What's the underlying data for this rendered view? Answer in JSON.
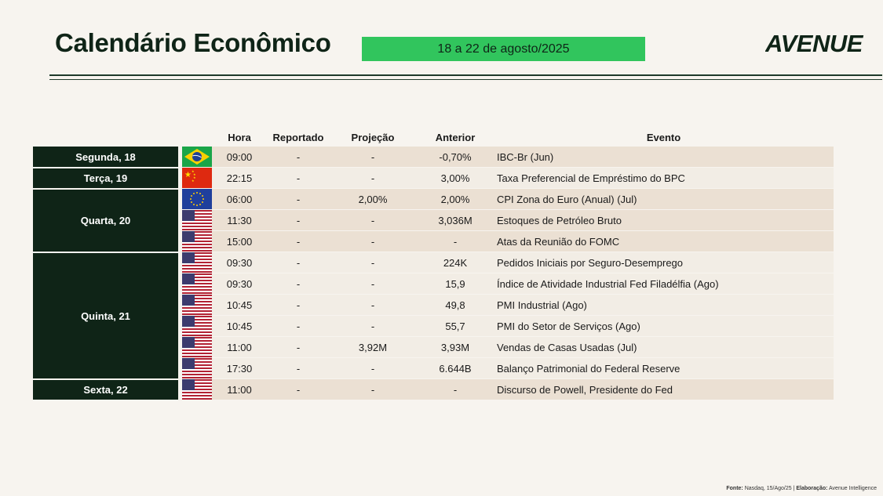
{
  "header": {
    "title": "Calendário Econômico",
    "period": "18 a 22 de agosto/2025",
    "logo_text": "Avenue"
  },
  "columns": {
    "hora": "Hora",
    "reportado": "Reportado",
    "projecao": "Projeção",
    "anterior": "Anterior",
    "evento": "Evento"
  },
  "days": [
    "Segunda, 18",
    "Terça, 19",
    "Quarta, 20",
    "Quinta, 21",
    "Sexta, 22"
  ],
  "rows": [
    {
      "flag": "brazil-flag",
      "hora": "09:00",
      "reportado": "-",
      "projecao": "-",
      "anterior": "-0,70%",
      "evento": "IBC-Br (Jun)"
    },
    {
      "flag": "china-flag",
      "hora": "22:15",
      "reportado": "-",
      "projecao": "-",
      "anterior": "3,00%",
      "evento": "Taxa Preferencial de Empréstimo do BPC"
    },
    {
      "flag": "eu-flag",
      "hora": "06:00",
      "reportado": "-",
      "projecao": "2,00%",
      "anterior": "2,00%",
      "evento": "CPI Zona do Euro (Anual) (Jul)"
    },
    {
      "flag": "usa-flag",
      "hora": "11:30",
      "reportado": "-",
      "projecao": "-",
      "anterior": "3,036M",
      "evento": "Estoques de Petróleo Bruto"
    },
    {
      "flag": "usa-flag",
      "hora": "15:00",
      "reportado": "-",
      "projecao": "-",
      "anterior": "-",
      "evento": "Atas da Reunião do FOMC"
    },
    {
      "flag": "usa-flag",
      "hora": "09:30",
      "reportado": "-",
      "projecao": "-",
      "anterior": "224K",
      "evento": "Pedidos Iniciais por Seguro-Desemprego"
    },
    {
      "flag": "usa-flag",
      "hora": "09:30",
      "reportado": "-",
      "projecao": "-",
      "anterior": "15,9",
      "evento": "Índice de Atividade Industrial Fed Filadélfia (Ago)"
    },
    {
      "flag": "usa-flag",
      "hora": "10:45",
      "reportado": "-",
      "projecao": "-",
      "anterior": "49,8",
      "evento": "PMI Industrial (Ago)"
    },
    {
      "flag": "usa-flag",
      "hora": "10:45",
      "reportado": "-",
      "projecao": "-",
      "anterior": "55,7",
      "evento": "PMI do Setor de Serviços (Ago)"
    },
    {
      "flag": "usa-flag",
      "hora": "11:00",
      "reportado": "-",
      "projecao": "3,92M",
      "anterior": "3,93M",
      "evento": "Vendas de Casas Usadas (Jul)"
    },
    {
      "flag": "usa-flag",
      "hora": "17:30",
      "reportado": "-",
      "projecao": "-",
      "anterior": "6.644B",
      "evento": "Balanço Patrimonial do Federal Reserve"
    },
    {
      "flag": "usa-flag",
      "hora": "11:00",
      "reportado": "-",
      "projecao": "-",
      "anterior": "-",
      "evento": "Discurso de Powell, Presidente do Fed"
    }
  ],
  "footer": {
    "source_label": "Fonte:",
    "source_value": "Nasdaq, 15/Ago/25 |",
    "elab_label": "Elaboração:",
    "elab_value": "Avenue Intelligence"
  },
  "colors": {
    "accent_green": "#31c55d",
    "dark_green": "#0f2417",
    "row_shade": "#ebe0d3",
    "row_light": "#f2ede5",
    "background": "#f7f4ef"
  }
}
